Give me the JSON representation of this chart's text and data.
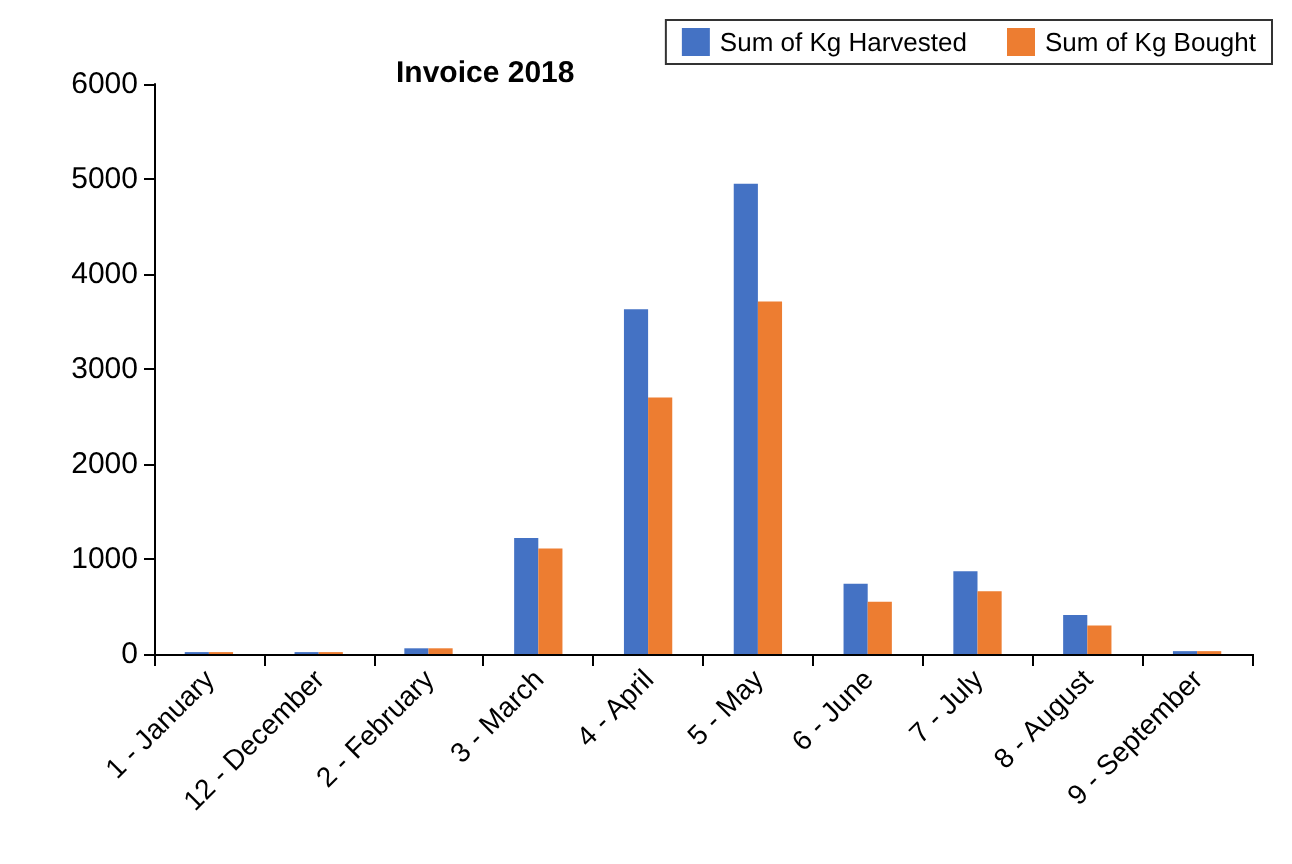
{
  "chart_data": {
    "type": "bar",
    "title": "Invoice 2018",
    "categories": [
      "1 - January",
      "12 - December",
      "2 - February",
      "3 - March",
      "4 - April",
      "5 - May",
      "6 - June",
      "7 - July",
      "8 - August",
      "9 - September"
    ],
    "series": [
      {
        "name": "Sum of Kg Harvested",
        "color": "#4472c4",
        "values": [
          20,
          20,
          60,
          1220,
          3630,
          4950,
          740,
          870,
          410,
          30
        ]
      },
      {
        "name": "Sum of Kg Bought",
        "color": "#ed7d31",
        "values": [
          20,
          20,
          60,
          1110,
          2700,
          3710,
          550,
          660,
          300,
          30
        ]
      }
    ],
    "ylim": [
      0,
      6000
    ],
    "yticks": [
      0,
      1000,
      2000,
      3000,
      4000,
      5000,
      6000
    ],
    "grid": false,
    "legend": "top right"
  }
}
